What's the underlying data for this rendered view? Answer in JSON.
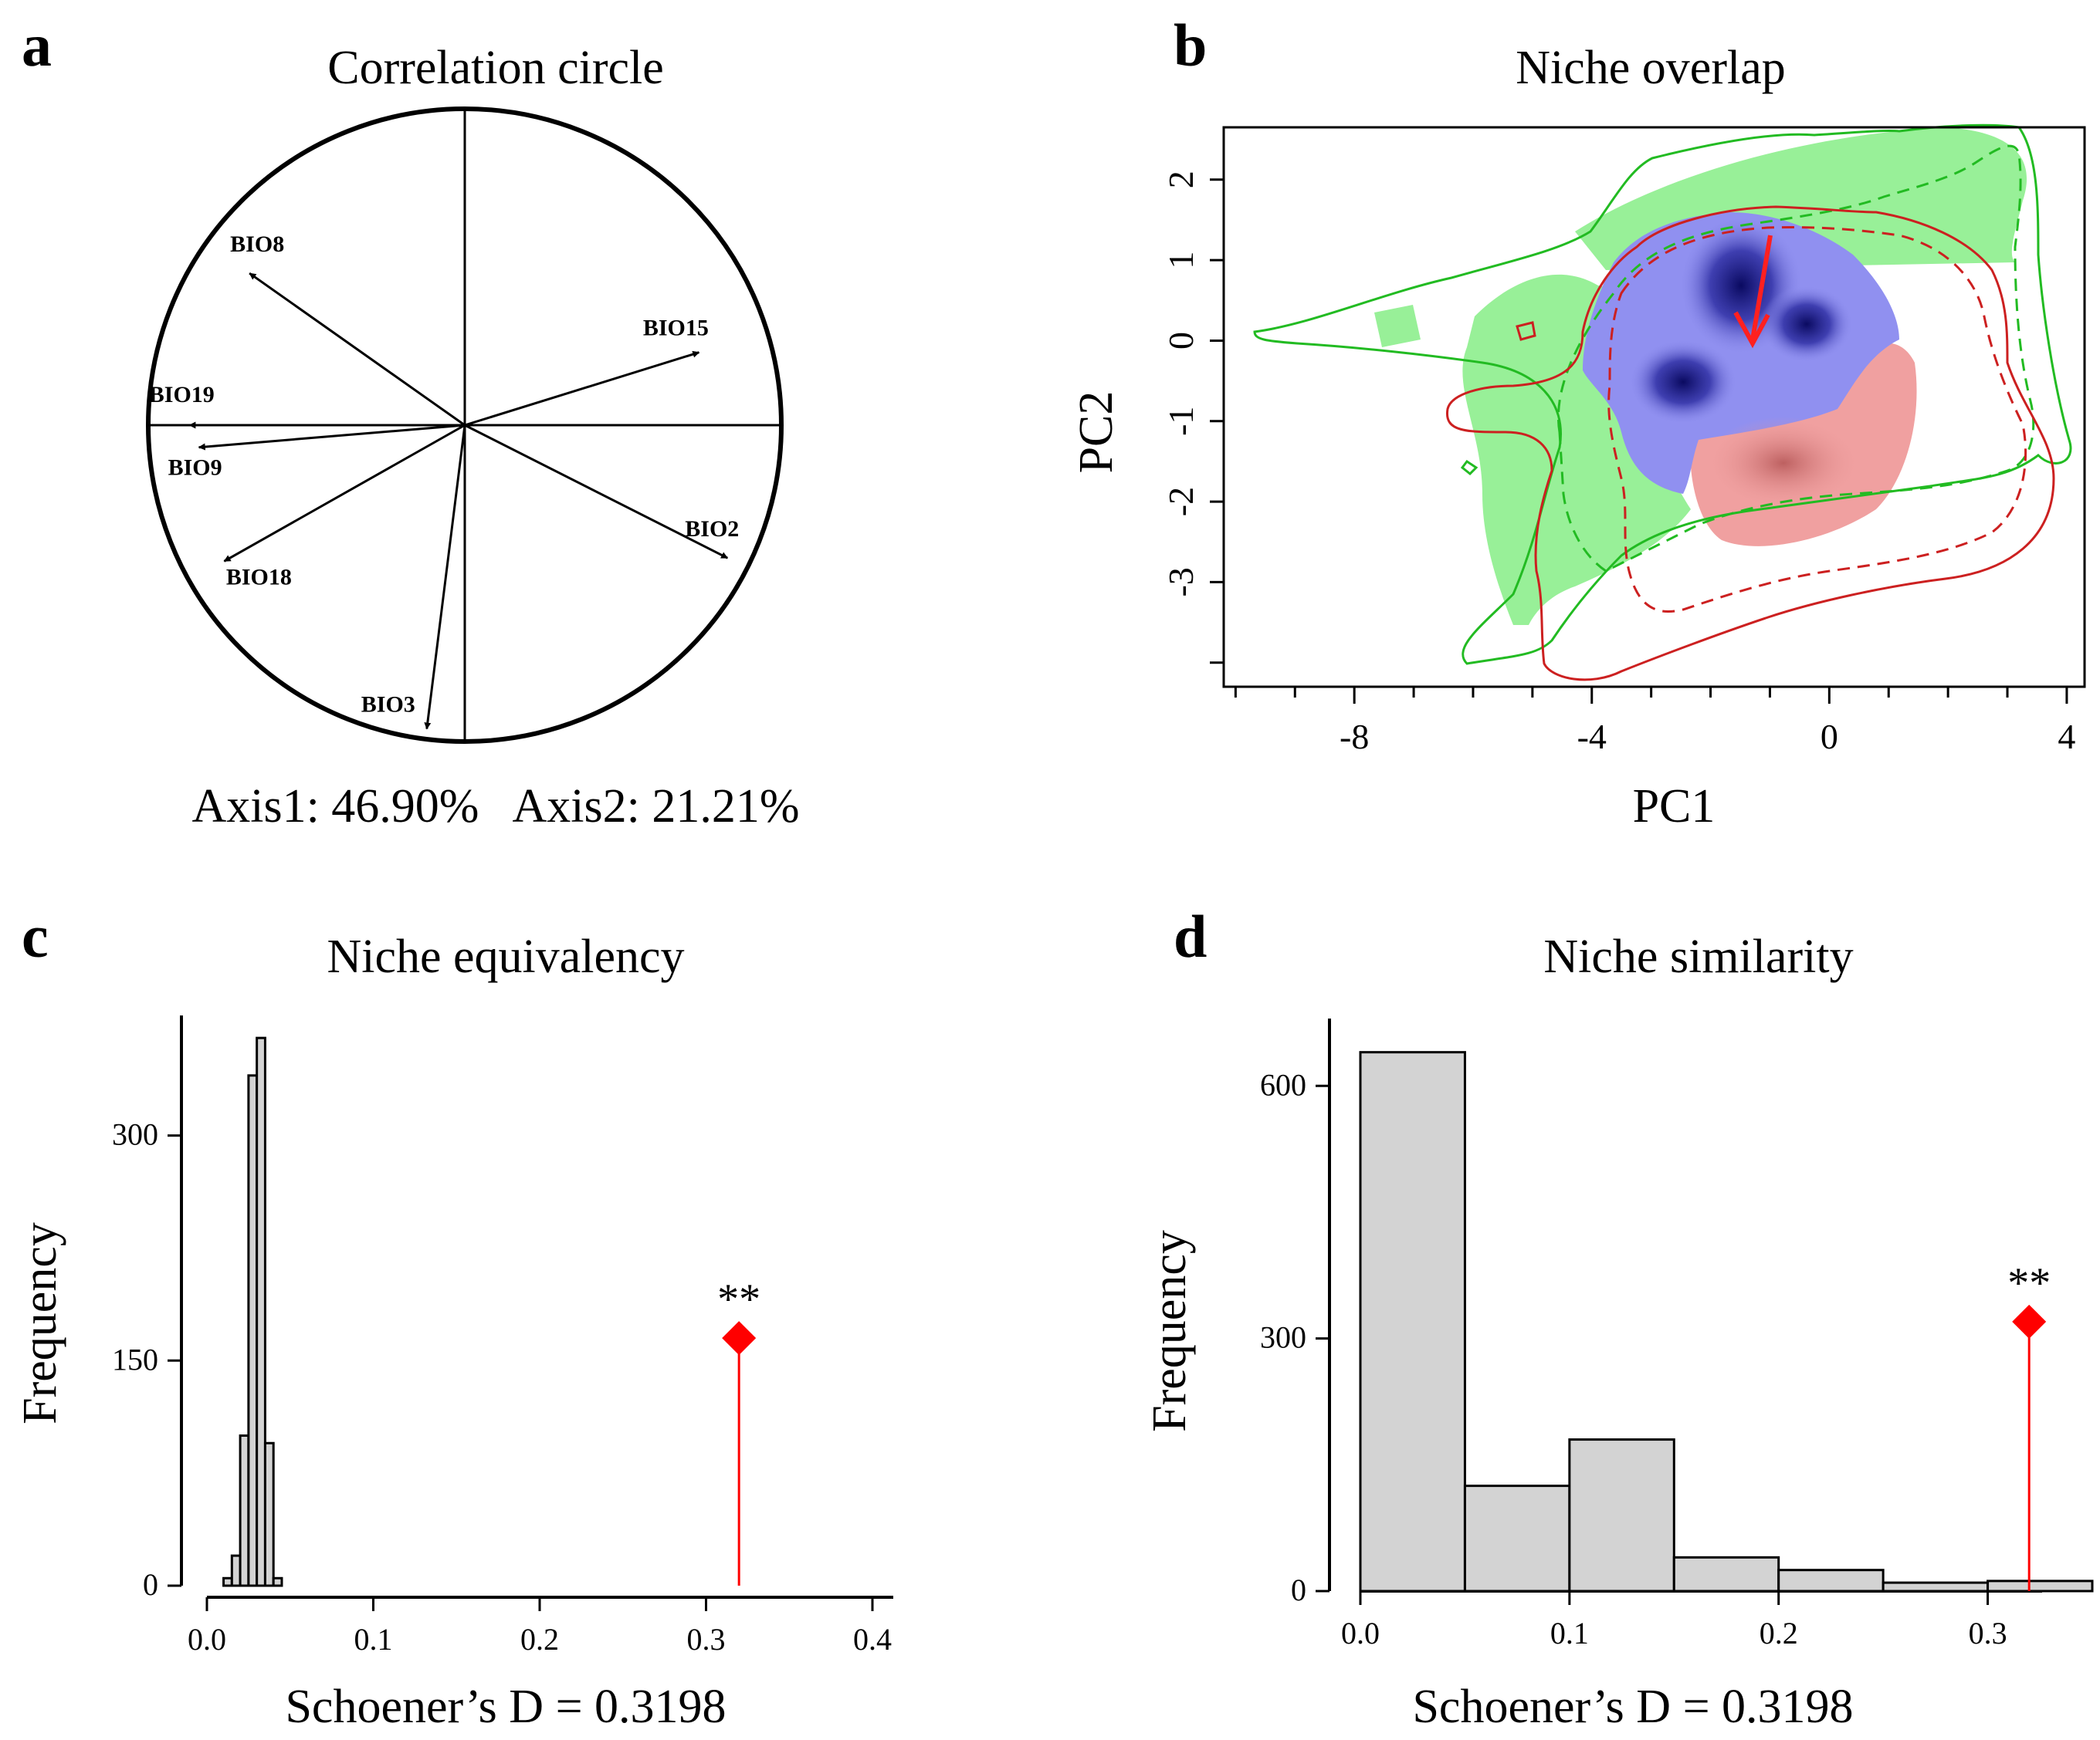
{
  "chart_data": [
    {
      "panel": "a",
      "type": "biplot",
      "title": "Correlation circle",
      "caption": "Axis1: 46.90%   Axis2: 21.21%",
      "vectors": [
        {
          "name": "BIO8",
          "x": -0.68,
          "y": 0.48
        },
        {
          "name": "BIO15",
          "x": 0.74,
          "y": 0.23
        },
        {
          "name": "BIO19",
          "x": -0.87,
          "y": 0.0
        },
        {
          "name": "BIO9",
          "x": -0.84,
          "y": -0.07
        },
        {
          "name": "BIO2",
          "x": 0.83,
          "y": -0.42
        },
        {
          "name": "BIO18",
          "x": -0.76,
          "y": -0.43
        },
        {
          "name": "BIO3",
          "x": -0.12,
          "y": -0.96
        }
      ]
    },
    {
      "panel": "b",
      "type": "heatmap",
      "title": "Niche overlap",
      "xlabel": "PC1",
      "ylabel": "PC2",
      "xlim": [
        -10.2,
        4.3
      ],
      "ylim": [
        -4.3,
        2.65
      ],
      "xticks": [
        -8,
        -4,
        0,
        4
      ],
      "yticks": [
        2,
        1,
        0,
        -1,
        -2,
        -3
      ],
      "colors": {
        "native": "#98f098",
        "invasive": "#f0a0a0",
        "overlap": "#9090f0",
        "core": "#10106a",
        "line_native": "#22bb22",
        "line_invasive": "#cc2020",
        "arrow": "#ff2020"
      },
      "centroid_shift": {
        "from": [
          -1.3,
          1.3
        ],
        "to": [
          -1.5,
          0.0
        ]
      }
    },
    {
      "panel": "c",
      "type": "bar",
      "title": "Niche equivalency",
      "xlabel": "Schoener’s D = 0.3198",
      "ylabel": "Frequency",
      "xlim": [
        0,
        0.4
      ],
      "ylim": [
        0,
        380
      ],
      "xticks": [
        "0.0",
        "0.1",
        "0.2",
        "0.3",
        "0.4"
      ],
      "yticks": [
        "0",
        "150",
        "300"
      ],
      "bin_width": 0.005,
      "bins": [
        {
          "x0": 0.01,
          "count": 5
        },
        {
          "x0": 0.015,
          "count": 20
        },
        {
          "x0": 0.02,
          "count": 100
        },
        {
          "x0": 0.025,
          "count": 340
        },
        {
          "x0": 0.03,
          "count": 365
        },
        {
          "x0": 0.035,
          "count": 95
        },
        {
          "x0": 0.04,
          "count": 5
        }
      ],
      "observed": {
        "value": 0.3198,
        "marker_y": 165,
        "label": "**"
      }
    },
    {
      "panel": "d",
      "type": "bar",
      "title": "Niche similarity",
      "xlabel": "Schoener’s D = 0.3198",
      "ylabel": "Frequency",
      "xlim": [
        0,
        0.35
      ],
      "ylim": [
        0,
        680
      ],
      "xticks": [
        "0.0",
        "0.1",
        "0.2",
        "0.3"
      ],
      "yticks": [
        "0",
        "300",
        "600"
      ],
      "bin_width": 0.05,
      "bins": [
        {
          "x0": 0.0,
          "count": 640
        },
        {
          "x0": 0.05,
          "count": 125
        },
        {
          "x0": 0.1,
          "count": 180
        },
        {
          "x0": 0.15,
          "count": 40
        },
        {
          "x0": 0.2,
          "count": 25
        },
        {
          "x0": 0.25,
          "count": 10
        },
        {
          "x0": 0.3,
          "count": 12
        }
      ],
      "observed": {
        "value": 0.3198,
        "marker_y": 320,
        "label": "**"
      }
    }
  ]
}
